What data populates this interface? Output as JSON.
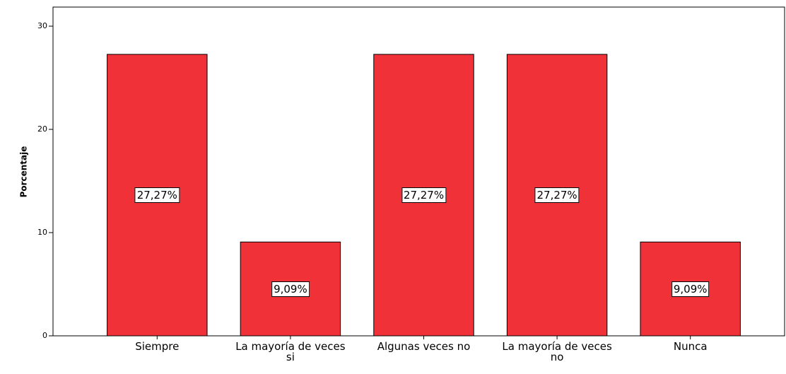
{
  "chart_data": {
    "type": "bar",
    "y_label": "Porcentaje",
    "categories": [
      "Siempre",
      "La mayoría de veces si",
      "Algunas veces no",
      "La mayoría de veces no",
      "Nunca"
    ],
    "values": [
      27.27,
      9.09,
      27.27,
      27.27,
      9.09
    ],
    "value_labels": [
      "27,27%",
      "9,09%",
      "27,27%",
      "27,27%",
      "9,09%"
    ],
    "color": "#f03238",
    "ylim": [
      0,
      31.85
    ],
    "yticks": [
      0,
      10,
      20,
      30
    ],
    "grid": false
  }
}
